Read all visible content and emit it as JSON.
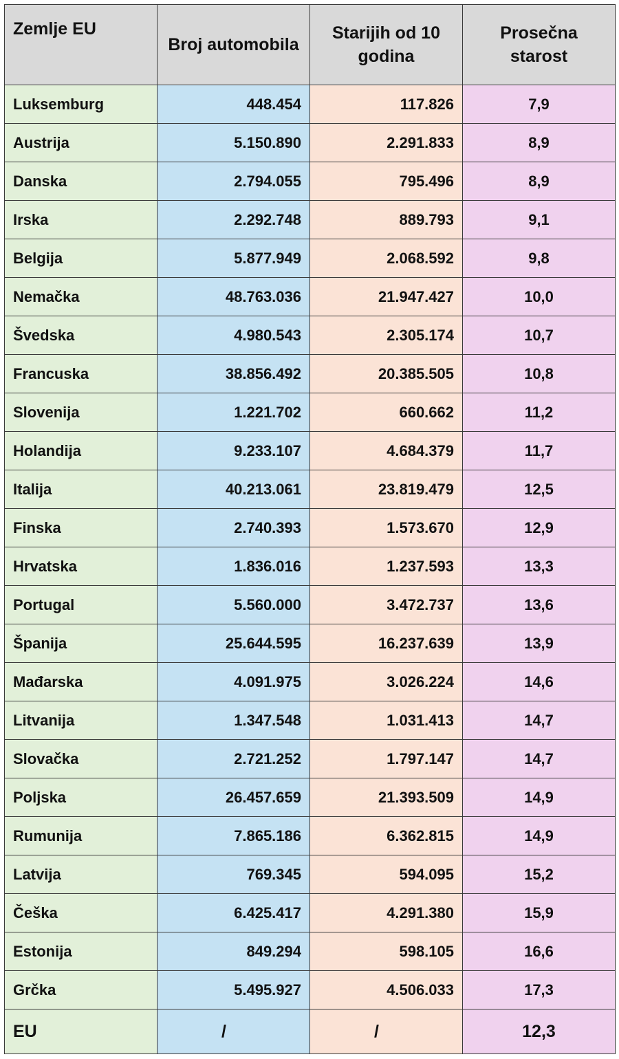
{
  "table": {
    "headers": {
      "country": "Zemlje EU",
      "cars": "Broj automobila",
      "older10": "Starijih od 10 godina",
      "avg_age": "Prosečna starost"
    },
    "rows": [
      {
        "country": "Luksemburg",
        "cars": "448.454",
        "older10": "117.826",
        "avg_age": "7,9"
      },
      {
        "country": "Austrija",
        "cars": "5.150.890",
        "older10": "2.291.833",
        "avg_age": "8,9"
      },
      {
        "country": "Danska",
        "cars": "2.794.055",
        "older10": "795.496",
        "avg_age": "8,9"
      },
      {
        "country": "Irska",
        "cars": "2.292.748",
        "older10": "889.793",
        "avg_age": "9,1"
      },
      {
        "country": "Belgija",
        "cars": "5.877.949",
        "older10": "2.068.592",
        "avg_age": "9,8"
      },
      {
        "country": "Nemačka",
        "cars": "48.763.036",
        "older10": "21.947.427",
        "avg_age": "10,0"
      },
      {
        "country": "Švedska",
        "cars": "4.980.543",
        "older10": "2.305.174",
        "avg_age": "10,7"
      },
      {
        "country": "Francuska",
        "cars": "38.856.492",
        "older10": "20.385.505",
        "avg_age": "10,8"
      },
      {
        "country": "Slovenija",
        "cars": "1.221.702",
        "older10": "660.662",
        "avg_age": "11,2"
      },
      {
        "country": "Holandija",
        "cars": "9.233.107",
        "older10": "4.684.379",
        "avg_age": "11,7"
      },
      {
        "country": "Italija",
        "cars": "40.213.061",
        "older10": "23.819.479",
        "avg_age": "12,5"
      },
      {
        "country": "Finska",
        "cars": "2.740.393",
        "older10": "1.573.670",
        "avg_age": "12,9"
      },
      {
        "country": "Hrvatska",
        "cars": "1.836.016",
        "older10": "1.237.593",
        "avg_age": "13,3"
      },
      {
        "country": "Portugal",
        "cars": "5.560.000",
        "older10": "3.472.737",
        "avg_age": "13,6"
      },
      {
        "country": "Španija",
        "cars": "25.644.595",
        "older10": "16.237.639",
        "avg_age": "13,9"
      },
      {
        "country": "Mađarska",
        "cars": "4.091.975",
        "older10": "3.026.224",
        "avg_age": "14,6"
      },
      {
        "country": "Litvanija",
        "cars": "1.347.548",
        "older10": "1.031.413",
        "avg_age": "14,7"
      },
      {
        "country": "Slovačka",
        "cars": "2.721.252",
        "older10": "1.797.147",
        "avg_age": "14,7"
      },
      {
        "country": "Poljska",
        "cars": "26.457.659",
        "older10": "21.393.509",
        "avg_age": "14,9"
      },
      {
        "country": "Rumunija",
        "cars": "7.865.186",
        "older10": "6.362.815",
        "avg_age": "14,9"
      },
      {
        "country": "Latvija",
        "cars": "769.345",
        "older10": "594.095",
        "avg_age": "15,2"
      },
      {
        "country": "Češka",
        "cars": "6.425.417",
        "older10": "4.291.380",
        "avg_age": "15,9"
      },
      {
        "country": "Estonija",
        "cars": "849.294",
        "older10": "598.105",
        "avg_age": "16,6"
      },
      {
        "country": "Grčka",
        "cars": "5.495.927",
        "older10": "4.506.033",
        "avg_age": "17,3"
      }
    ],
    "total": {
      "country": "EU",
      "cars": "/",
      "older10": "/",
      "avg_age": "12,3"
    }
  },
  "colors": {
    "header_bg": "#d9d9d9",
    "country_col": "#e2f0d9",
    "cars_col": "#c5e2f3",
    "older10_col": "#fbe3d6",
    "avg_age_col": "#f0d2ee"
  }
}
